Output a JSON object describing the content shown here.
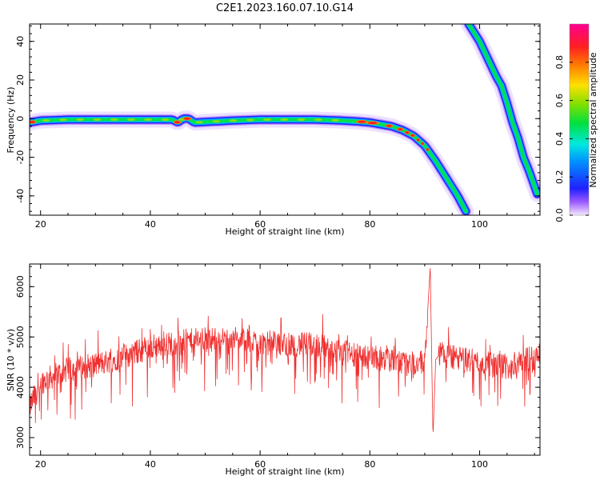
{
  "title": "C2E1.2023.160.07.10.G14",
  "chart_data": [
    {
      "type": "heatmap",
      "xlabel": "Height of straight line (km)",
      "ylabel": "Frequency (Hz)",
      "xlim": [
        18,
        111
      ],
      "ylim": [
        -50,
        49
      ],
      "x_ticks": [
        20,
        40,
        60,
        80,
        100
      ],
      "y_ticks": [
        -40,
        -20,
        0,
        20,
        40
      ],
      "track_1": {
        "x": [
          18,
          20,
          25,
          30,
          35,
          40,
          44,
          45,
          46,
          47,
          48,
          55,
          60,
          65,
          70,
          75,
          78,
          80,
          82,
          84,
          86,
          88,
          90,
          92,
          94,
          96,
          97.5
        ],
        "y": [
          -2,
          -1,
          -0.5,
          -0.5,
          -0.5,
          -0.5,
          -0.5,
          -2,
          0,
          0,
          -2,
          -1,
          -0.5,
          -0.5,
          -0.5,
          -1,
          -1.5,
          -2,
          -3,
          -4,
          -6,
          -9,
          -14,
          -22,
          -31,
          -40,
          -48
        ]
      },
      "track_2": {
        "x": [
          98,
          100,
          102,
          103,
          104,
          105,
          106,
          107,
          108,
          109,
          110.5
        ],
        "y": [
          49,
          40,
          28,
          22,
          17,
          8,
          -2,
          -10,
          -20,
          -27,
          -39
        ]
      },
      "colorbar": {
        "label": "Normalized spectral amplitude",
        "range": [
          0,
          1
        ],
        "ticks": [
          0.0,
          0.2,
          0.4,
          0.6,
          0.8
        ]
      },
      "color_primary": "#00e050",
      "color_core": "#ff2020",
      "color_halo": "#c8a8ff"
    },
    {
      "type": "line",
      "xlabel": "Height of straight line (km)",
      "ylabel": "SNR (10 * v/v)",
      "xlim": [
        18,
        111
      ],
      "ylim": [
        2650,
        6450
      ],
      "x_ticks": [
        20,
        40,
        60,
        80,
        100
      ],
      "y_ticks": [
        3000,
        4000,
        5000,
        6000
      ],
      "series": [
        {
          "color": "#f03030",
          "x": [
            18,
            20,
            25,
            30,
            35,
            40,
            45,
            50,
            55,
            60,
            65,
            70,
            75,
            80,
            85,
            88,
            90,
            91,
            91.5,
            92,
            93,
            95,
            100,
            105,
            110,
            111
          ],
          "y": [
            3600,
            4100,
            4350,
            4450,
            4600,
            4800,
            4900,
            4950,
            4950,
            4900,
            4850,
            4850,
            4700,
            4600,
            4500,
            4450,
            4500,
            6400,
            3000,
            4550,
            4700,
            4600,
            4500,
            4400,
            4600,
            4700
          ]
        }
      ]
    }
  ]
}
